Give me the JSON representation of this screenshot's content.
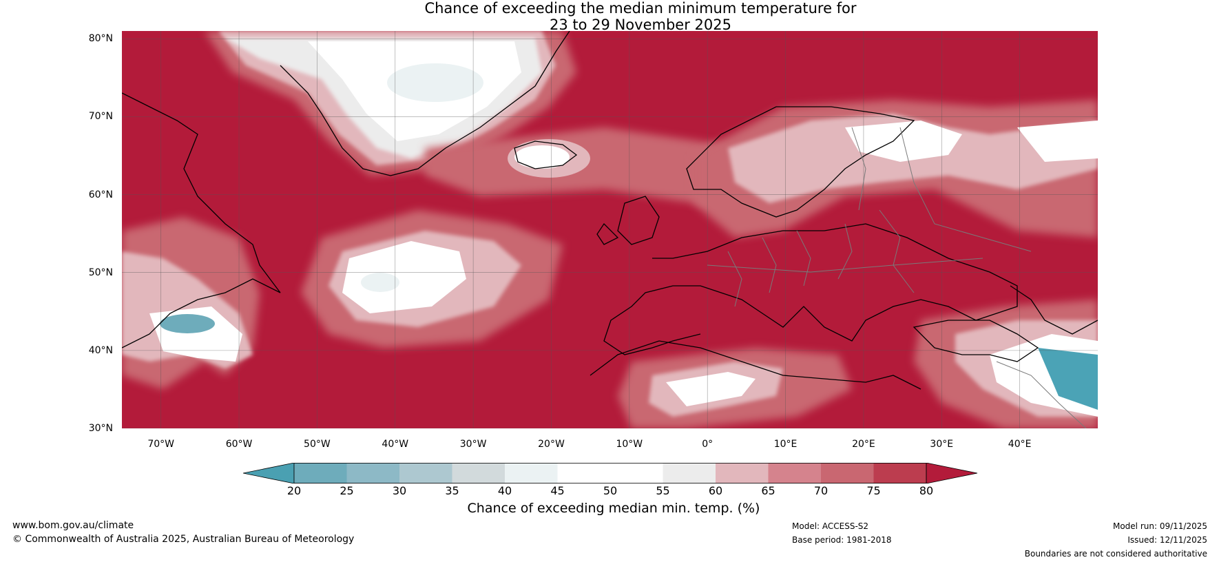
{
  "title": {
    "line1": "Chance of exceeding the median minimum temperature for",
    "line2": "23 to 29 November 2025"
  },
  "latitudes": [
    {
      "label": "80°N",
      "lat": 80
    },
    {
      "label": "70°N",
      "lat": 70
    },
    {
      "label": "60°N",
      "lat": 60
    },
    {
      "label": "50°N",
      "lat": 50
    },
    {
      "label": "40°N",
      "lat": 40
    },
    {
      "label": "30°N",
      "lat": 30
    }
  ],
  "longitudes": [
    {
      "label": "70°W",
      "lon": -70
    },
    {
      "label": "60°W",
      "lon": -60
    },
    {
      "label": "50°W",
      "lon": -50
    },
    {
      "label": "40°W",
      "lon": -40
    },
    {
      "label": "30°W",
      "lon": -30
    },
    {
      "label": "20°W",
      "lon": -20
    },
    {
      "label": "10°W",
      "lon": -10
    },
    {
      "label": "0°",
      "lon": 0
    },
    {
      "label": "10°E",
      "lon": 10
    },
    {
      "label": "20°E",
      "lon": 20
    },
    {
      "label": "30°E",
      "lon": 30
    },
    {
      "label": "40°E",
      "lon": 40
    }
  ],
  "map": {
    "lon_range": [
      -75,
      50
    ],
    "lat_range": [
      30,
      81
    ]
  },
  "colorbar": {
    "ticks": [
      "20",
      "25",
      "30",
      "35",
      "40",
      "45",
      "50",
      "55",
      "60",
      "65",
      "70",
      "75",
      "80"
    ],
    "colors": [
      "#4ba3b6",
      "#6eacbb",
      "#8db9c6",
      "#adc8d0",
      "#d2dadc",
      "#ebf2f3",
      "#ffffff",
      "#ffffff",
      "#ececec",
      "#e2b7bc",
      "#d5838d",
      "#c96771",
      "#bc3d4f"
    ],
    "under_color": "#4aa0b2",
    "over_color": "#b31b3a",
    "label": "Chance of exceeding median min. temp. (%)"
  },
  "footer": {
    "website": "www.bom.gov.au/climate",
    "copyright": "© Commonwealth of Australia 2025, Australian Bureau of Meteorology",
    "model": "Model: ACCESS-S2",
    "base_period": "Base period: 1981-2018",
    "model_run": "Model run: 09/11/2025",
    "issued": "Issued: 12/11/2025",
    "disclaimer": "Boundaries are not considered authoritative"
  }
}
